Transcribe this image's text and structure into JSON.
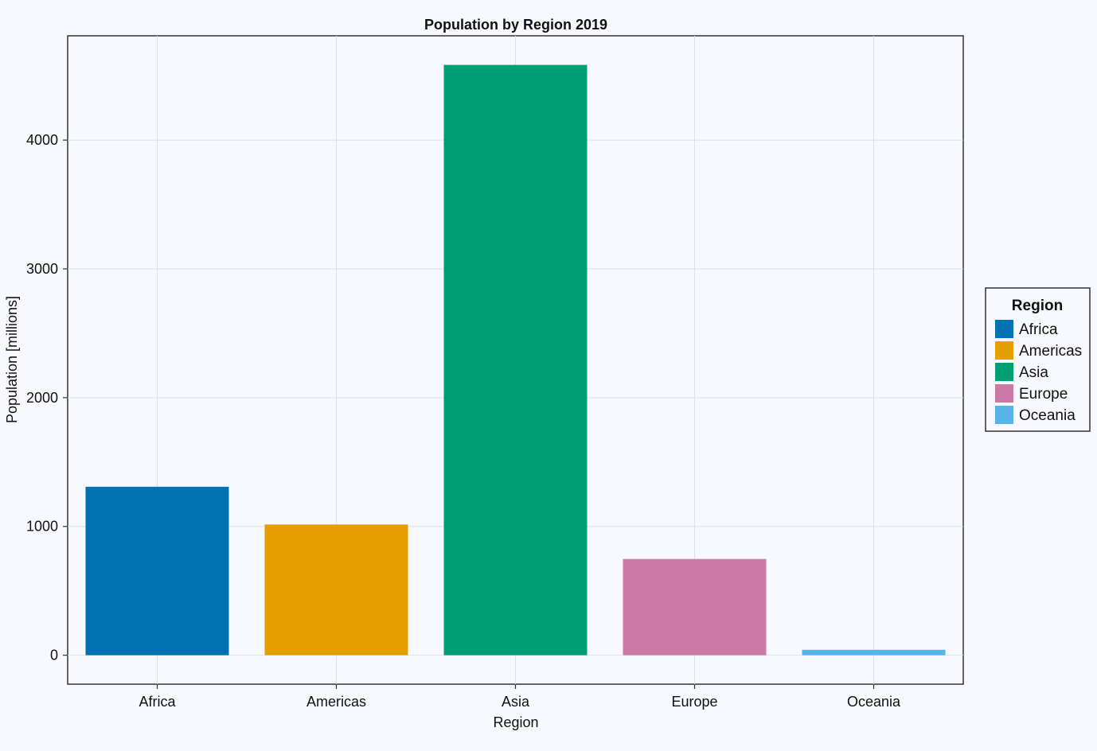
{
  "chart_data": {
    "type": "bar",
    "title": "Population by Region 2019",
    "xlabel": "Region",
    "ylabel": "Population [millions]",
    "categories": [
      "Africa",
      "Americas",
      "Asia",
      "Europe",
      "Oceania"
    ],
    "values": [
      1308,
      1015,
      4584,
      747,
      42
    ],
    "colors": [
      "#0072b2",
      "#e69f00",
      "#009e73",
      "#cc79a7",
      "#56b4e9"
    ],
    "ylim": [
      -225,
      4810
    ],
    "yticks": [
      0,
      1000,
      2000,
      3000,
      4000
    ],
    "grid": true,
    "legend": {
      "title": "Region",
      "placement": "right",
      "entries": [
        "Africa",
        "Americas",
        "Asia",
        "Europe",
        "Oceania"
      ]
    }
  }
}
